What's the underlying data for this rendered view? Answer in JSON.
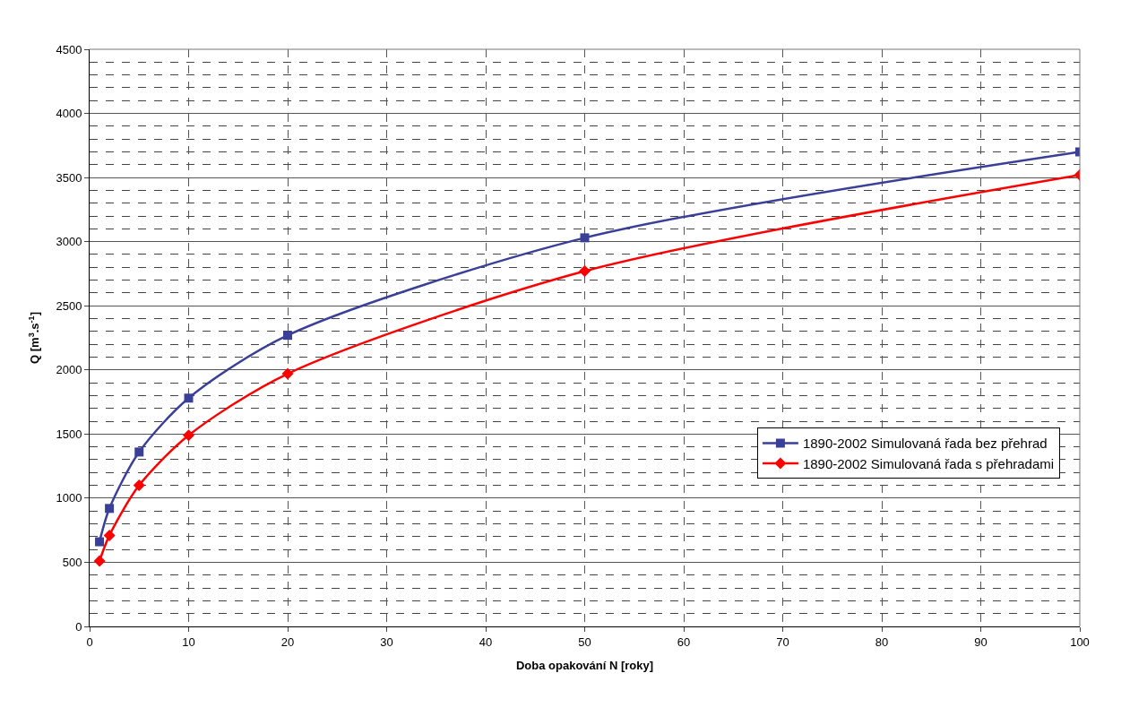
{
  "chart_data": {
    "type": "line",
    "xlabel": "Doba opakování N [roky]",
    "ylabel": "Q [m$^{3}$.s$^{-1}$]",
    "x": [
      1,
      2,
      5,
      10,
      20,
      50,
      100
    ],
    "series": [
      {
        "name": "1890-2002 Simulovaná řada bez přehrad",
        "color": "#3a3f98",
        "values": [
          660,
          920,
          1360,
          1780,
          2270,
          3030,
          3700
        ],
        "marker": "square"
      },
      {
        "name": "1890-2002 Simulovaná řada s přehradami",
        "color": "#ff0000",
        "values": [
          510,
          710,
          1100,
          1490,
          1970,
          2770,
          3520
        ],
        "marker": "diamond"
      }
    ],
    "xlim": [
      0,
      100
    ],
    "xticks": [
      0,
      10,
      20,
      30,
      40,
      50,
      60,
      70,
      80,
      90,
      100
    ],
    "ylim": [
      0,
      4500
    ],
    "yticks": [
      0,
      500,
      1000,
      1500,
      2000,
      2500,
      3000,
      3500,
      4000,
      4500
    ],
    "grid": true,
    "legend": "right",
    "line_style": "solid"
  }
}
